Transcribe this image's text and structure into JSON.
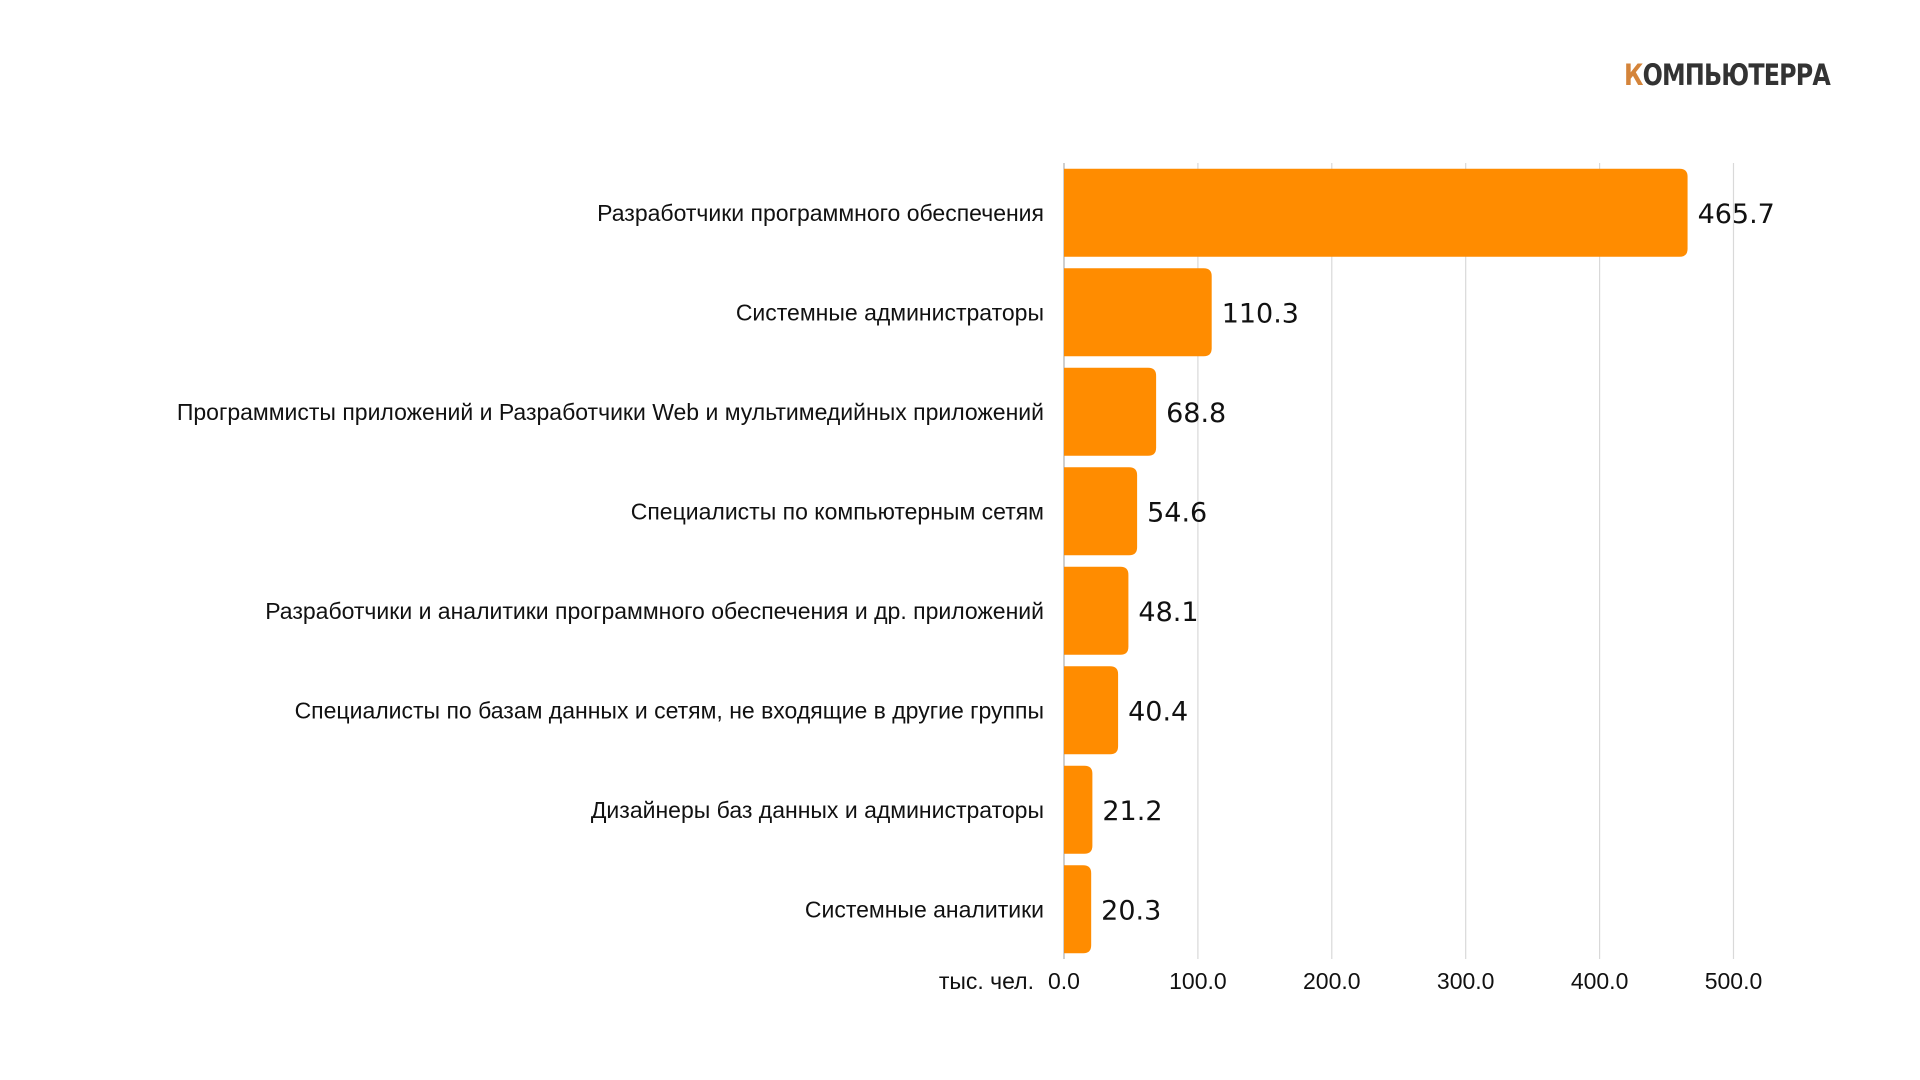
{
  "logo": {
    "first_letter": "К",
    "rest": "ОМПЬЮТЕРРА",
    "accent_color": "#d4843a",
    "text_color": "#333333"
  },
  "chart_data": {
    "type": "bar",
    "orientation": "horizontal",
    "categories": [
      "Разработчики программного обеспечения",
      "Системные администраторы",
      "Программисты приложений и Разработчики Web и мультимедийных приложений",
      "Специалисты по компьютерным сетям",
      "Разработчики и аналитики программного обеспечения и др. приложений",
      "Специалисты по базам данных и сетям, не входящие в другие группы",
      "Дизайнеры баз данных и администраторы",
      "Системные аналитики"
    ],
    "values": [
      465.7,
      110.3,
      68.8,
      54.6,
      48.1,
      40.4,
      21.2,
      20.3
    ],
    "value_labels": [
      "465.7",
      "110.3",
      "68.8",
      "54.6",
      "48.1",
      "40.4",
      "21.2",
      "20.3"
    ],
    "xlabel": "тыс. чел.",
    "xticks": [
      "0.0",
      "100.0",
      "200.0",
      "300.0",
      "400.0",
      "500.0"
    ],
    "xlim": [
      0,
      500
    ],
    "grid": true,
    "bar_color": "#ff8c00",
    "grid_color": "#d9d9d9"
  }
}
